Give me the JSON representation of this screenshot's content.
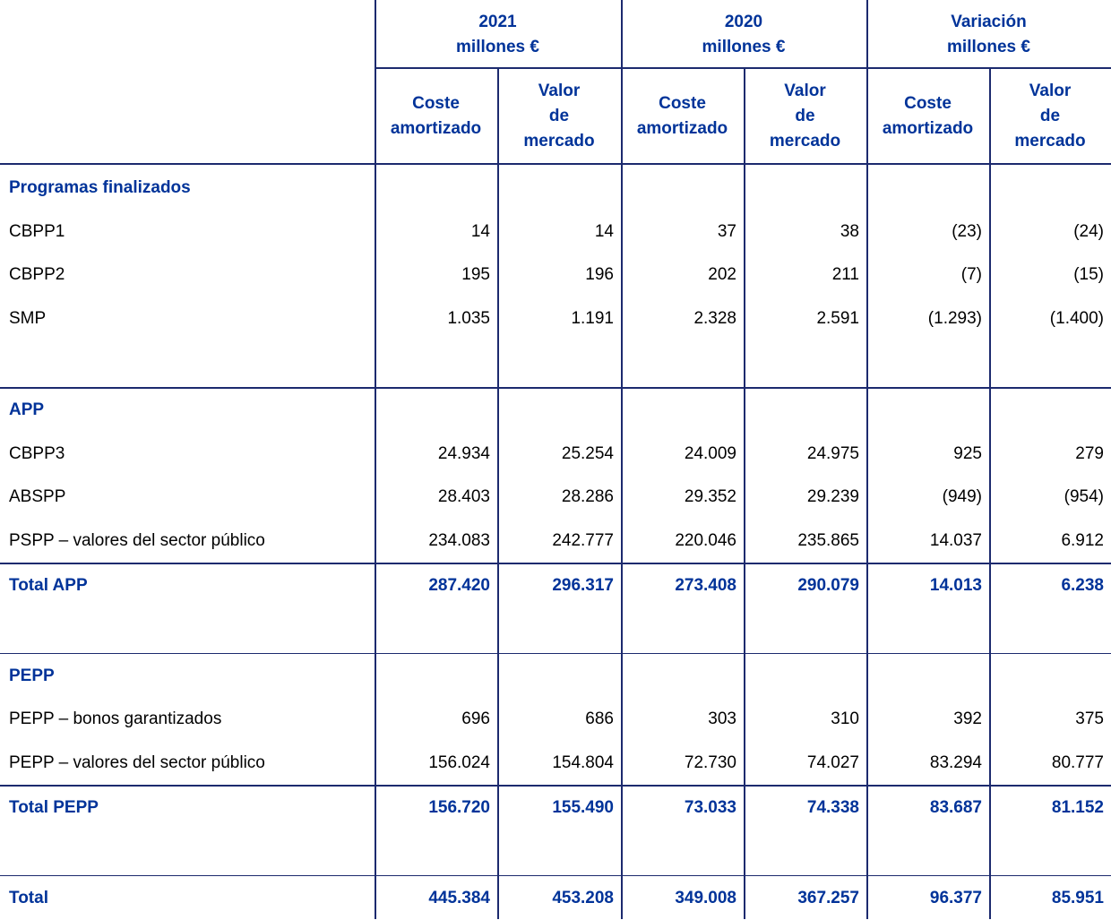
{
  "header": {
    "groups": [
      "2021\nmillones €",
      "2020\nmillones €",
      "Variación\nmillones €"
    ],
    "subheaders": [
      "Coste\namortizado",
      "Valor\nde\nmercado",
      "Coste\namortizado",
      "Valor\nde\nmercado",
      "Coste\namortizado",
      "Valor\nde\nmercado"
    ]
  },
  "sections": [
    {
      "title": "Programas finalizados",
      "rows": [
        {
          "label": "CBPP1",
          "values": [
            "14",
            "14",
            "37",
            "38",
            "(23)",
            "(24)"
          ]
        },
        {
          "label": "CBPP2",
          "values": [
            "195",
            "196",
            "202",
            "211",
            "(7)",
            "(15)"
          ]
        },
        {
          "label": "SMP",
          "values": [
            "1.035",
            "1.191",
            "2.328",
            "2.591",
            "(1.293)",
            "(1.400)"
          ]
        }
      ]
    },
    {
      "title": "APP",
      "rows": [
        {
          "label": "CBPP3",
          "values": [
            "24.934",
            "25.254",
            "24.009",
            "24.975",
            "925",
            "279"
          ]
        },
        {
          "label": "ABSPP",
          "values": [
            "28.403",
            "28.286",
            "29.352",
            "29.239",
            "(949)",
            "(954)"
          ]
        },
        {
          "label": "PSPP – valores del sector público",
          "values": [
            "234.083",
            "242.777",
            "220.046",
            "235.865",
            "14.037",
            "6.912"
          ]
        }
      ],
      "total": {
        "label": "Total APP",
        "values": [
          "287.420",
          "296.317",
          "273.408",
          "290.079",
          "14.013",
          "6.238"
        ]
      }
    },
    {
      "title": "PEPP",
      "rows": [
        {
          "label": "PEPP – bonos garantizados",
          "values": [
            "696",
            "686",
            "303",
            "310",
            "392",
            "375"
          ]
        },
        {
          "label": "PEPP – valores del sector público",
          "values": [
            "156.024",
            "154.804",
            "72.730",
            "74.027",
            "83.294",
            "80.777"
          ]
        }
      ],
      "total": {
        "label": "Total PEPP",
        "values": [
          "156.720",
          "155.490",
          "73.033",
          "74.338",
          "83.687",
          "81.152"
        ]
      }
    }
  ],
  "total": {
    "label": "Total",
    "values": [
      "445.384",
      "453.208",
      "349.008",
      "367.257",
      "96.377",
      "85.951"
    ]
  }
}
